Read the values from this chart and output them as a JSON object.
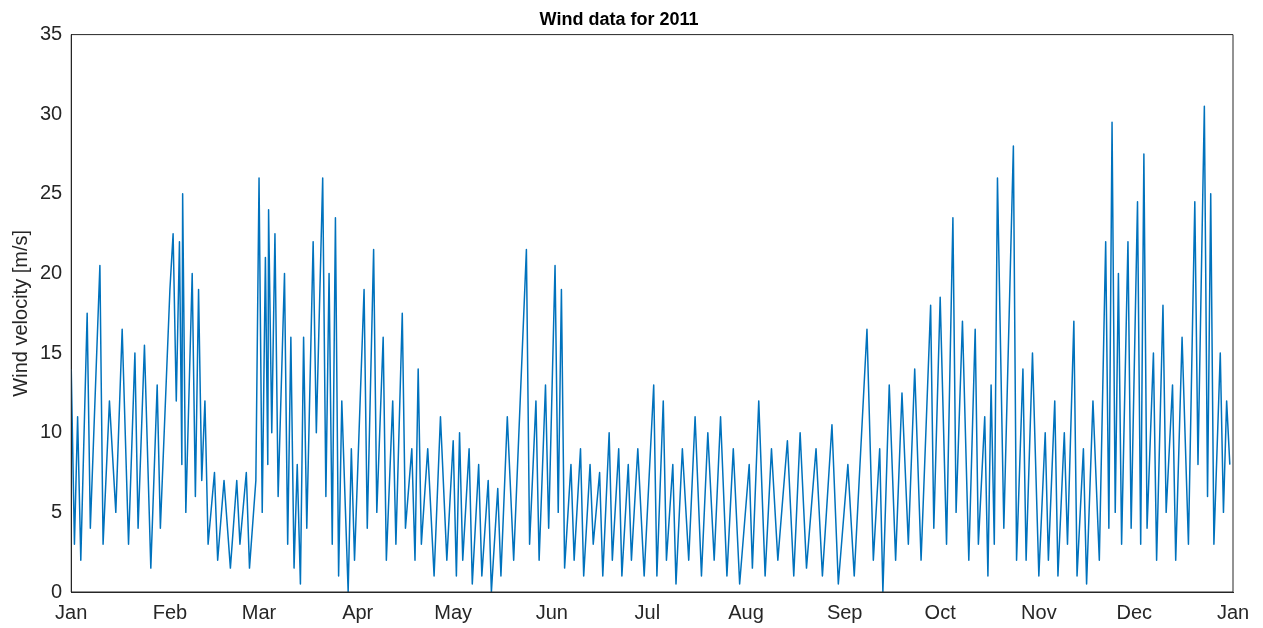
{
  "chart_data": {
    "type": "line",
    "title": "Wind data for 2011",
    "ylabel": "Wind velocity [m/s]",
    "x": [
      "2011-01-01",
      "2011-01-02",
      "2011-01-03",
      "2011-01-04",
      "2011-01-06",
      "2011-01-07",
      "2011-01-10",
      "2011-01-11",
      "2011-01-13",
      "2011-01-15",
      "2011-01-17",
      "2011-01-19",
      "2011-01-21",
      "2011-01-22",
      "2011-01-24",
      "2011-01-26",
      "2011-01-28",
      "2011-01-29",
      "2011-02-01",
      "2011-02-02",
      "2011-02-03",
      "2011-02-04",
      "2011-02-04T18:00",
      "2011-02-05",
      "2011-02-06",
      "2011-02-08",
      "2011-02-09",
      "2011-02-10",
      "2011-02-11",
      "2011-02-12",
      "2011-02-13",
      "2011-02-15",
      "2011-02-16",
      "2011-02-18",
      "2011-02-20",
      "2011-02-22",
      "2011-02-23",
      "2011-02-25",
      "2011-02-26",
      "2011-02-28",
      "2011-03-01",
      "2011-03-02",
      "2011-03-03",
      "2011-03-03T18:00",
      "2011-03-04",
      "2011-03-05",
      "2011-03-06",
      "2011-03-07",
      "2011-03-09",
      "2011-03-10",
      "2011-03-11",
      "2011-03-12",
      "2011-03-13",
      "2011-03-14",
      "2011-03-15",
      "2011-03-16",
      "2011-03-18",
      "2011-03-19",
      "2011-03-21",
      "2011-03-22",
      "2011-03-23",
      "2011-03-24",
      "2011-03-25",
      "2011-03-26",
      "2011-03-27",
      "2011-03-29",
      "2011-03-30",
      "2011-03-31",
      "2011-04-03",
      "2011-04-04",
      "2011-04-06",
      "2011-04-07",
      "2011-04-09",
      "2011-04-10",
      "2011-04-12",
      "2011-04-13",
      "2011-04-15",
      "2011-04-16",
      "2011-04-18",
      "2011-04-19",
      "2011-04-20",
      "2011-04-21",
      "2011-04-23",
      "2011-04-25",
      "2011-04-27",
      "2011-04-29",
      "2011-05-01",
      "2011-05-02",
      "2011-05-03",
      "2011-05-04",
      "2011-05-06",
      "2011-05-07",
      "2011-05-09",
      "2011-05-10",
      "2011-05-12",
      "2011-05-13",
      "2011-05-15",
      "2011-05-16",
      "2011-05-18",
      "2011-05-20",
      "2011-05-24",
      "2011-05-25",
      "2011-05-27",
      "2011-05-28",
      "2011-05-30",
      "2011-05-31",
      "2011-06-02",
      "2011-06-03",
      "2011-06-04",
      "2011-06-05",
      "2011-06-07",
      "2011-06-08",
      "2011-06-10",
      "2011-06-11",
      "2011-06-13",
      "2011-06-14",
      "2011-06-16",
      "2011-06-17",
      "2011-06-19",
      "2011-06-20",
      "2011-06-22",
      "2011-06-23",
      "2011-06-25",
      "2011-06-26",
      "2011-06-28",
      "2011-06-30",
      "2011-07-03",
      "2011-07-04",
      "2011-07-06",
      "2011-07-07",
      "2011-07-09",
      "2011-07-10",
      "2011-07-12",
      "2011-07-14",
      "2011-07-16",
      "2011-07-18",
      "2011-07-20",
      "2011-07-22",
      "2011-07-24",
      "2011-07-26",
      "2011-07-28",
      "2011-07-30",
      "2011-08-02",
      "2011-08-03",
      "2011-08-05",
      "2011-08-07",
      "2011-08-09",
      "2011-08-11",
      "2011-08-14",
      "2011-08-16",
      "2011-08-18",
      "2011-08-20",
      "2011-08-23",
      "2011-08-25",
      "2011-08-28",
      "2011-08-30",
      "2011-09-02",
      "2011-09-04",
      "2011-09-08",
      "2011-09-10",
      "2011-09-12",
      "2011-09-13",
      "2011-09-15",
      "2011-09-17",
      "2011-09-19",
      "2011-09-21",
      "2011-09-23",
      "2011-09-25",
      "2011-09-28",
      "2011-09-29",
      "2011-10-01",
      "2011-10-03",
      "2011-10-05",
      "2011-10-06",
      "2011-10-08",
      "2011-10-10",
      "2011-10-12",
      "2011-10-13",
      "2011-10-15",
      "2011-10-16",
      "2011-10-17",
      "2011-10-18",
      "2011-10-19",
      "2011-10-21",
      "2011-10-24",
      "2011-10-25",
      "2011-10-27",
      "2011-10-28",
      "2011-10-30",
      "2011-11-01",
      "2011-11-03",
      "2011-11-04",
      "2011-11-06",
      "2011-11-07",
      "2011-11-09",
      "2011-11-10",
      "2011-11-12",
      "2011-11-13",
      "2011-11-15",
      "2011-11-16",
      "2011-11-18",
      "2011-11-20",
      "2011-11-22",
      "2011-11-23",
      "2011-11-24",
      "2011-11-25",
      "2011-11-26",
      "2011-11-27",
      "2011-11-29",
      "2011-11-30",
      "2011-12-02",
      "2011-12-03",
      "2011-12-04",
      "2011-12-05",
      "2011-12-07",
      "2011-12-08",
      "2011-12-10",
      "2011-12-11",
      "2011-12-13",
      "2011-12-14",
      "2011-12-16",
      "2011-12-18",
      "2011-12-20",
      "2011-12-21",
      "2011-12-23",
      "2011-12-24",
      "2011-12-25",
      "2011-12-26",
      "2011-12-28",
      "2011-12-29",
      "2011-12-30",
      "2011-12-31"
    ],
    "values": [
      14,
      3,
      11,
      2,
      17.5,
      4,
      20.5,
      3,
      12,
      5,
      16.5,
      3,
      15,
      4,
      15.5,
      1.5,
      13,
      4,
      19,
      22.5,
      12,
      22,
      8,
      25,
      5,
      20,
      6,
      19,
      7,
      12,
      3,
      7.5,
      2,
      7,
      1.5,
      7,
      3,
      7.5,
      1.5,
      7,
      26,
      5,
      21,
      8,
      24,
      10,
      22.5,
      6,
      20,
      3,
      16,
      1.5,
      8,
      0.5,
      16,
      4,
      22,
      10,
      26,
      6,
      20,
      3,
      23.5,
      1,
      12,
      0,
      9,
      2,
      19,
      4,
      21.5,
      5,
      16,
      2,
      12,
      3,
      17.5,
      4,
      9,
      2,
      14,
      3,
      9,
      1,
      11,
      2,
      9.5,
      1,
      10,
      2,
      9,
      0.5,
      8,
      1,
      7,
      0,
      6.5,
      1,
      11,
      2,
      21.5,
      3,
      12,
      2,
      13,
      4,
      20.5,
      5,
      19,
      1.5,
      8,
      2,
      9,
      1,
      8,
      3,
      7.5,
      1,
      10,
      2,
      9,
      1,
      8,
      2,
      9,
      1,
      13,
      1,
      12,
      2,
      8,
      0.5,
      9,
      2,
      11,
      1,
      10,
      2,
      11,
      1,
      9,
      0.5,
      8,
      1.5,
      12,
      1,
      9,
      2,
      9.5,
      1,
      10,
      1.5,
      9,
      1,
      10.5,
      0.5,
      8,
      1,
      16.5,
      2,
      9,
      0,
      13,
      2,
      12.5,
      3,
      14,
      2,
      18,
      4,
      18.5,
      3,
      23.5,
      5,
      17,
      2,
      16.5,
      3,
      11,
      1,
      13,
      3,
      26,
      4,
      28,
      2,
      14,
      2,
      15,
      1,
      10,
      2,
      12,
      1,
      10,
      3,
      17,
      1,
      9,
      0.5,
      12,
      2,
      22,
      4,
      29.5,
      5,
      20,
      3,
      22,
      4,
      24.5,
      3,
      27.5,
      4,
      15,
      2,
      18,
      5,
      13,
      2,
      16,
      3,
      24.5,
      8,
      30.5,
      6,
      25,
      3,
      15,
      5,
      12,
      8
    ],
    "color": "#0072bd",
    "legend": false,
    "grid": false,
    "xlim": [
      "2011-01-01",
      "2012-01-01"
    ],
    "xticks": [
      {
        "value": "2011-01-01",
        "label": "Jan"
      },
      {
        "value": "2011-02-01",
        "label": "Feb"
      },
      {
        "value": "2011-03-01",
        "label": "Mar"
      },
      {
        "value": "2011-04-01",
        "label": "Apr"
      },
      {
        "value": "2011-05-01",
        "label": "May"
      },
      {
        "value": "2011-06-01",
        "label": "Jun"
      },
      {
        "value": "2011-07-01",
        "label": "Jul"
      },
      {
        "value": "2011-08-01",
        "label": "Aug"
      },
      {
        "value": "2011-09-01",
        "label": "Sep"
      },
      {
        "value": "2011-10-01",
        "label": "Oct"
      },
      {
        "value": "2011-11-01",
        "label": "Nov"
      },
      {
        "value": "2011-12-01",
        "label": "Dec"
      },
      {
        "value": "2012-01-01",
        "label": "Jan"
      }
    ],
    "ylim": [
      0,
      35
    ],
    "yticks": [
      0,
      5,
      10,
      15,
      20,
      25,
      30,
      35
    ]
  }
}
